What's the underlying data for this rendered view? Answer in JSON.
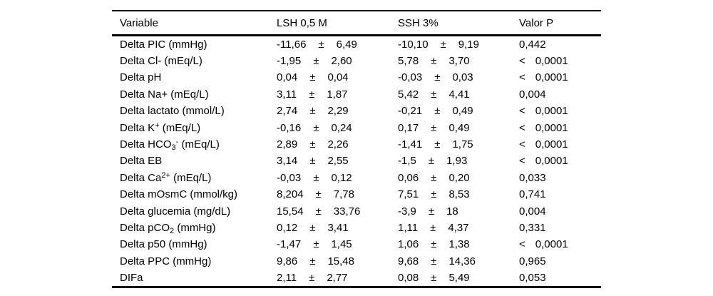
{
  "table": {
    "headers": {
      "variable": "Variable",
      "lsh": "LSH 0,5 M",
      "ssh": "SSH 3%",
      "p": "Valor P"
    },
    "pm_sign": "±",
    "lt_sign": "<",
    "rows": [
      {
        "variable_parts": [
          {
            "t": "Delta PIC (mmHg)"
          }
        ],
        "lsh": {
          "mean": "-11,66",
          "sd": "6,49"
        },
        "ssh": {
          "mean": "-10,10",
          "sd": "9,19"
        },
        "p": {
          "lt": false,
          "value": "0,442"
        }
      },
      {
        "variable_parts": [
          {
            "t": "Delta Cl- (mEq/L)"
          }
        ],
        "lsh": {
          "mean": "-1,95",
          "sd": "2,60"
        },
        "ssh": {
          "mean": "5,78",
          "sd": "3,70"
        },
        "p": {
          "lt": true,
          "value": "0,0001"
        }
      },
      {
        "variable_parts": [
          {
            "t": "Delta pH"
          }
        ],
        "lsh": {
          "mean": "0,04",
          "sd": "0,04"
        },
        "ssh": {
          "mean": "-0,03",
          "sd": "0,03"
        },
        "p": {
          "lt": true,
          "value": "0,0001"
        }
      },
      {
        "variable_parts": [
          {
            "t": "Delta Na+ (mEq/L)"
          }
        ],
        "lsh": {
          "mean": "3,11",
          "sd": "1,87"
        },
        "ssh": {
          "mean": "5,42",
          "sd": "4,41"
        },
        "p": {
          "lt": false,
          "value": "0,004"
        }
      },
      {
        "variable_parts": [
          {
            "t": "Delta lactato (mmol/L)"
          }
        ],
        "lsh": {
          "mean": "2,74",
          "sd": "2,29"
        },
        "ssh": {
          "mean": "-0,21",
          "sd": "0,49"
        },
        "p": {
          "lt": true,
          "value": "0,0001"
        }
      },
      {
        "variable_parts": [
          {
            "t": "Delta K"
          },
          {
            "t": "+",
            "s": "sup"
          },
          {
            "t": " (mEq/L)"
          }
        ],
        "lsh": {
          "mean": "-0,16",
          "sd": "0,24"
        },
        "ssh": {
          "mean": "0,17",
          "sd": "0,49"
        },
        "p": {
          "lt": true,
          "value": "0,0001"
        }
      },
      {
        "variable_parts": [
          {
            "t": "Delta HCO"
          },
          {
            "t": "3",
            "s": "sub"
          },
          {
            "t": "-",
            "s": "sup"
          },
          {
            "t": " (mEq/L)"
          }
        ],
        "lsh": {
          "mean": "2,89",
          "sd": "2,26"
        },
        "ssh": {
          "mean": "-1,41",
          "sd": "1,75"
        },
        "p": {
          "lt": true,
          "value": "0,0001"
        }
      },
      {
        "variable_parts": [
          {
            "t": "Delta EB"
          }
        ],
        "lsh": {
          "mean": "3,14",
          "sd": "2,55"
        },
        "ssh": {
          "mean": "-1,5",
          "sd": "1,93"
        },
        "p": {
          "lt": true,
          "value": "0,0001"
        }
      },
      {
        "variable_parts": [
          {
            "t": "Delta Ca"
          },
          {
            "t": "2+",
            "s": "sup"
          },
          {
            "t": " (mEq/L)"
          }
        ],
        "lsh": {
          "mean": "-0,03",
          "sd": "0,12"
        },
        "ssh": {
          "mean": "0,06",
          "sd": "0,20"
        },
        "p": {
          "lt": false,
          "value": "0,033"
        }
      },
      {
        "variable_parts": [
          {
            "t": "Delta mOsmC (mmol/kg)"
          }
        ],
        "lsh": {
          "mean": "8,204",
          "sd": "7,78"
        },
        "ssh": {
          "mean": "7,51",
          "sd": "8,53"
        },
        "p": {
          "lt": false,
          "value": "0,741"
        }
      },
      {
        "variable_parts": [
          {
            "t": "Delta glucemia (mg/dL)"
          }
        ],
        "lsh": {
          "mean": "15,54",
          "sd": "33,76"
        },
        "ssh": {
          "mean": "-3,9",
          "sd": "18"
        },
        "p": {
          "lt": false,
          "value": "0,004"
        }
      },
      {
        "variable_parts": [
          {
            "t": "Delta pCO"
          },
          {
            "t": "2",
            "s": "sub"
          },
          {
            "t": " (mmHg)"
          }
        ],
        "lsh": {
          "mean": "0,12",
          "sd": "3,41"
        },
        "ssh": {
          "mean": "1,11",
          "sd": "4,37"
        },
        "p": {
          "lt": false,
          "value": "0,331"
        }
      },
      {
        "variable_parts": [
          {
            "t": "Delta p50 (mmHg)"
          }
        ],
        "lsh": {
          "mean": "-1,47",
          "sd": "1,45"
        },
        "ssh": {
          "mean": "1,06",
          "sd": "1,38"
        },
        "p": {
          "lt": true,
          "value": "0,0001"
        }
      },
      {
        "variable_parts": [
          {
            "t": "Delta PPC (mmHg)"
          }
        ],
        "lsh": {
          "mean": "9,86",
          "sd": "15,48"
        },
        "ssh": {
          "mean": "9,68",
          "sd": "14,36"
        },
        "p": {
          "lt": false,
          "value": "0,965"
        }
      },
      {
        "variable_parts": [
          {
            "t": "DIFa"
          }
        ],
        "lsh": {
          "mean": "2,11",
          "sd": "2,77"
        },
        "ssh": {
          "mean": "0,08",
          "sd": "5,49"
        },
        "p": {
          "lt": false,
          "value": "0,053"
        }
      }
    ]
  },
  "colors": {
    "background": "#ffffff",
    "text": "#000000",
    "rule": "#000000"
  }
}
